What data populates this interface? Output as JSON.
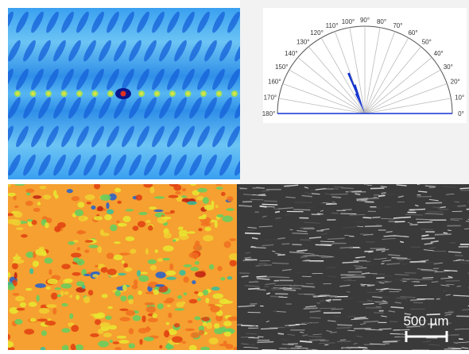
{
  "polar_plot": {
    "angle_labels": [
      "0°",
      "10°",
      "20°",
      "30°",
      "40°",
      "50°",
      "60°",
      "70°",
      "80°",
      "90°",
      "100°",
      "110°",
      "120°",
      "130°",
      "140°",
      "150°",
      "160°",
      "170°",
      "180°"
    ],
    "bars": [
      {
        "angle": 112,
        "length": 0.5
      },
      {
        "angle": 109,
        "length": 0.35
      },
      {
        "angle": 115,
        "length": 0.25
      }
    ]
  },
  "scale_bar": {
    "label": "500 µm"
  }
}
